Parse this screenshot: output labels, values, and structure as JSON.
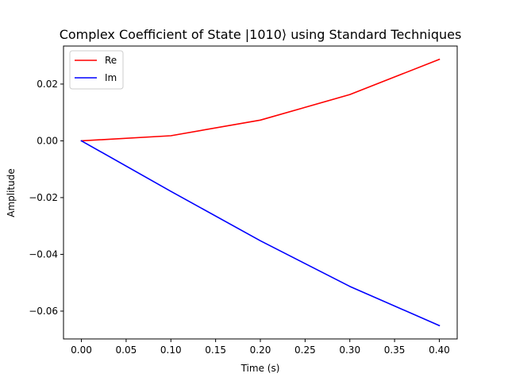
{
  "chart_data": {
    "type": "line",
    "title": "Complex Coefficient of State |1010⟩ using Standard Techniques",
    "xlabel": "Time (s)",
    "ylabel": "Amplitude",
    "x": [
      0.0,
      0.1,
      0.2,
      0.3,
      0.4
    ],
    "series": [
      {
        "name": "Re",
        "color": "#ff0000",
        "values": [
          0.0,
          0.0018,
          0.0073,
          0.0163,
          0.0287
        ]
      },
      {
        "name": "Im",
        "color": "#0000ff",
        "values": [
          0.0,
          -0.0178,
          -0.0352,
          -0.0513,
          -0.0651
        ]
      }
    ],
    "xlim": [
      -0.02,
      0.42
    ],
    "ylim": [
      -0.0698,
      0.0334
    ],
    "xticks": [
      0.0,
      0.05,
      0.1,
      0.15,
      0.2,
      0.25,
      0.3,
      0.35,
      0.4
    ],
    "xtick_labels": [
      "0.00",
      "0.05",
      "0.10",
      "0.15",
      "0.20",
      "0.25",
      "0.30",
      "0.35",
      "0.40"
    ],
    "yticks": [
      -0.06,
      -0.04,
      -0.02,
      0.0,
      0.02
    ],
    "ytick_labels": [
      "−0.06",
      "−0.04",
      "−0.02",
      "0.00",
      "0.02"
    ],
    "grid": false,
    "legend_position": "top-left"
  }
}
